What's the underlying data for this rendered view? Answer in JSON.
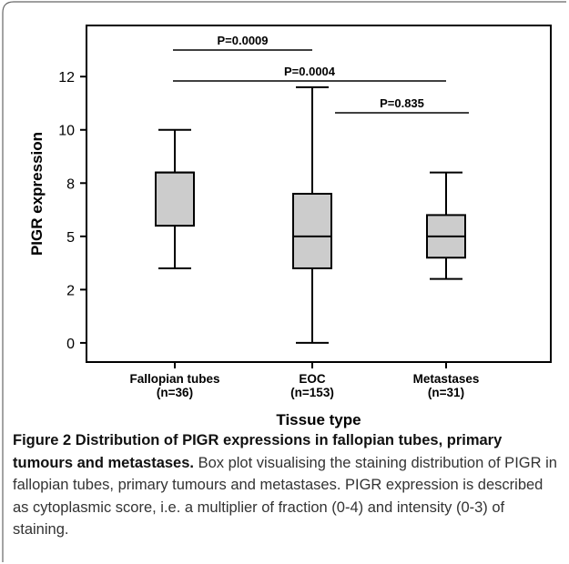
{
  "chart_data": {
    "type": "box",
    "y_label": "PIGR expression",
    "x_label": "Tissue type",
    "categories": [
      [
        "Fallopian tubes",
        "(n=36)"
      ],
      [
        "EOC",
        "(n=153)"
      ],
      [
        "Metastases",
        "(n=31)"
      ]
    ],
    "boxes": [
      {
        "min": 3.5,
        "q1": 5.5,
        "median": 8,
        "q3": 8,
        "max": 10
      },
      {
        "min": 0,
        "q1": 3.5,
        "median": 5,
        "q3": 7,
        "max": 12
      },
      {
        "min": 3,
        "q1": 4,
        "median": 5,
        "q3": 6,
        "max": 8
      }
    ],
    "color": "#cccccc",
    "ylim": [
      -0.9,
      14.9
    ],
    "yticks": [
      0,
      {
        "value": 2.5,
        "label": "2"
      },
      5,
      {
        "value": 7.5,
        "label": "8"
      },
      10,
      {
        "value": 12.5,
        "label": "12"
      }
    ],
    "annotations": [
      "P=0.0009",
      "P=0.0004",
      "P=0.835"
    ]
  },
  "caption": {
    "label": "Figure 2",
    "title": "Distribution of PIGR expressions in fallopian tubes, primary tumours and metastases.",
    "text": "Box plot visualising the staining distribution of PIGR in fallopian tubes, primary tumours and metastases. PIGR expression is described as cytoplasmic score, i.e. a multiplier of fraction (0-4) and intensity (0-3) of staining."
  }
}
